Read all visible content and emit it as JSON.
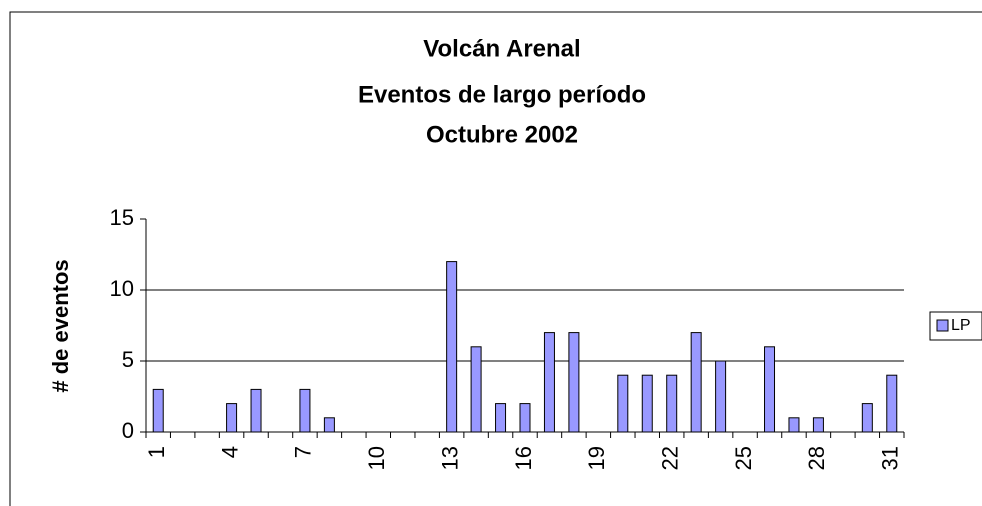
{
  "chart_data": {
    "type": "bar",
    "title": [
      "Volcán Arenal",
      "Eventos de largo período",
      "Octubre 2002"
    ],
    "y_label": "# de eventos",
    "categories": [
      "1",
      null,
      null,
      "4",
      null,
      null,
      "7",
      null,
      null,
      "10",
      null,
      null,
      "13",
      null,
      null,
      "16",
      null,
      null,
      "19",
      null,
      null,
      "22",
      null,
      null,
      "25",
      null,
      null,
      "28",
      null,
      null,
      "31"
    ],
    "series": [
      {
        "name": "LP",
        "color": "#9999ff",
        "values": [
          3,
          0,
          0,
          2,
          3,
          0,
          3,
          1,
          0,
          0,
          0,
          0,
          12,
          6,
          2,
          2,
          7,
          7,
          0,
          4,
          4,
          4,
          7,
          5,
          0,
          6,
          1,
          1,
          0,
          2,
          4
        ]
      }
    ],
    "ylim": [
      0,
      15
    ],
    "yticks": [
      0,
      5,
      10,
      15
    ],
    "grid": true,
    "legend": "right"
  }
}
